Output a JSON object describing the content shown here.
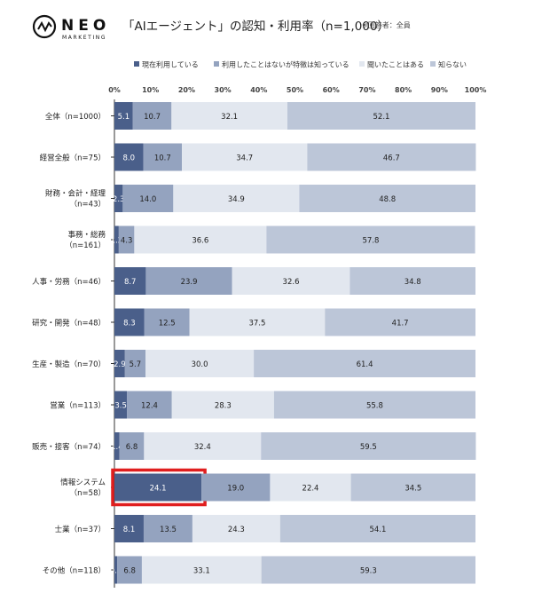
{
  "header": {
    "logo_main": "NEO",
    "logo_sub": "MARKETING",
    "title": "「AIエージェント」の認知・利用率（n=1,000）",
    "note": "※回答者：全員"
  },
  "chart_data": {
    "type": "bar",
    "orientation": "horizontal",
    "stacked": true,
    "xlim": [
      0,
      100
    ],
    "x_ticks": [
      "0%",
      "10%",
      "20%",
      "30%",
      "40%",
      "50%",
      "60%",
      "70%",
      "80%",
      "90%",
      "100%"
    ],
    "legend_position": "top",
    "categories": [
      [
        "全体（n=1000）"
      ],
      [
        "経営全般（n=75）"
      ],
      [
        "財務・会計・経理",
        "（n=43）"
      ],
      [
        "事務・総務",
        "（n=161）"
      ],
      [
        "人事・労務（n=46）"
      ],
      [
        "研究・開発（n=48）"
      ],
      [
        "生産・製造（n=70）"
      ],
      [
        "営業（n=113）"
      ],
      [
        "販売・接客（n=74）"
      ],
      [
        "情報システム",
        "（n=58）"
      ],
      [
        "士業（n=37）"
      ],
      [
        "その他（n=118）"
      ]
    ],
    "series": [
      {
        "name": "現在利用している",
        "color": "#4a5f8a",
        "text_color": "#ffffff",
        "values": [
          5.1,
          8.0,
          2.3,
          1.2,
          8.7,
          8.3,
          2.9,
          3.5,
          1.4,
          24.1,
          8.1,
          0.8
        ]
      },
      {
        "name": "利用したことはないが特徴は知っている",
        "color": "#94a3bf",
        "text_color": "#222222",
        "values": [
          10.7,
          10.7,
          14.0,
          4.3,
          23.9,
          12.5,
          5.7,
          12.4,
          6.8,
          19.0,
          13.5,
          6.8
        ]
      },
      {
        "name": "聞いたことはある",
        "color": "#e2e7ef",
        "text_color": "#222222",
        "values": [
          32.1,
          34.7,
          34.9,
          36.6,
          32.6,
          37.5,
          30.0,
          28.3,
          32.4,
          22.4,
          24.3,
          33.1
        ]
      },
      {
        "name": "知らない",
        "color": "#bcc6d8",
        "text_color": "#222222",
        "values": [
          52.1,
          46.7,
          48.8,
          57.8,
          34.8,
          41.7,
          61.4,
          55.8,
          59.5,
          34.5,
          54.1,
          59.3
        ]
      }
    ],
    "highlight": {
      "category_index": 9,
      "series_index": 0,
      "color": "#e01e1e"
    }
  }
}
